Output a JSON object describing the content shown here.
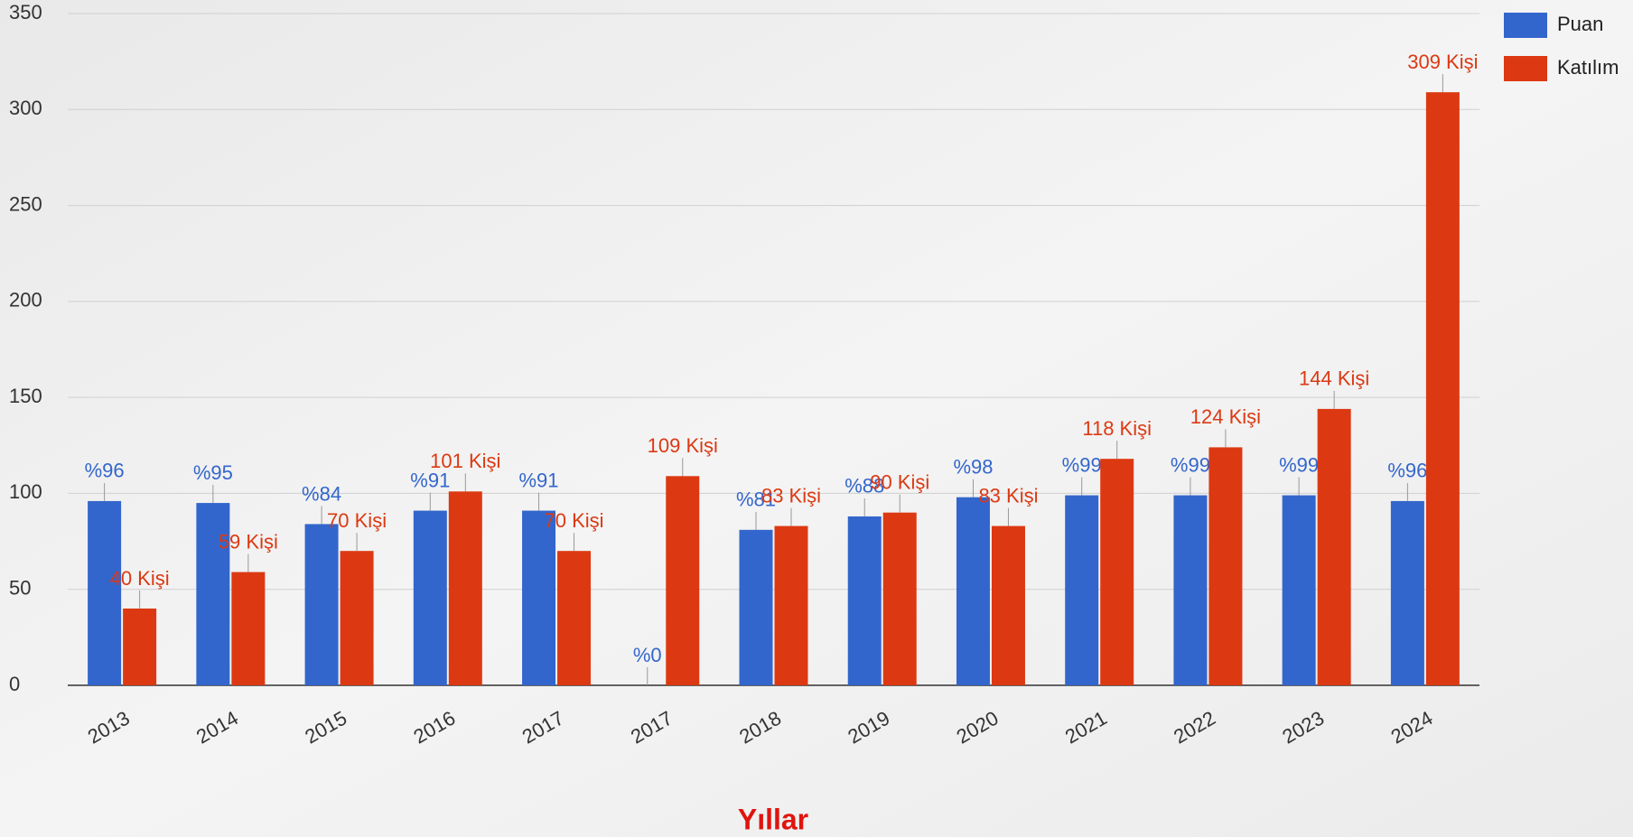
{
  "chart_data": {
    "type": "bar",
    "x_label": "Yıllar",
    "categories": [
      "2013",
      "2014",
      "2015",
      "2016",
      "2017",
      "2017",
      "2018",
      "2019",
      "2020",
      "2021",
      "2022",
      "2023",
      "2024"
    ],
    "series": [
      {
        "name": "Puan",
        "color": "#3366cc",
        "values": [
          96,
          95,
          84,
          91,
          91,
          0,
          81,
          88,
          98,
          99,
          99,
          99,
          96
        ],
        "value_labels": [
          "%96",
          "%95",
          "%84",
          "%91",
          "%91",
          "%0",
          "%81",
          "%88",
          "%98",
          "%99",
          "%99",
          "%99",
          "%96"
        ]
      },
      {
        "name": "Katılım",
        "color": "#dc3912",
        "values": [
          40,
          59,
          70,
          101,
          70,
          109,
          83,
          90,
          83,
          118,
          124,
          144,
          309
        ],
        "value_labels": [
          "40 Kişi",
          "59 Kişi",
          "70 Kişi",
          "101 Kişi",
          "70 Kişi",
          "109 Kişi",
          "83 Kişi",
          "90 Kişi",
          "83 Kişi",
          "118 Kişi",
          "124 Kişi",
          "144 Kişi",
          "309 Kişi"
        ]
      }
    ],
    "ylim": [
      0,
      350
    ],
    "yticks": [
      0,
      50,
      100,
      150,
      200,
      250,
      300,
      350
    ],
    "grid": true,
    "legend": "top-right"
  }
}
